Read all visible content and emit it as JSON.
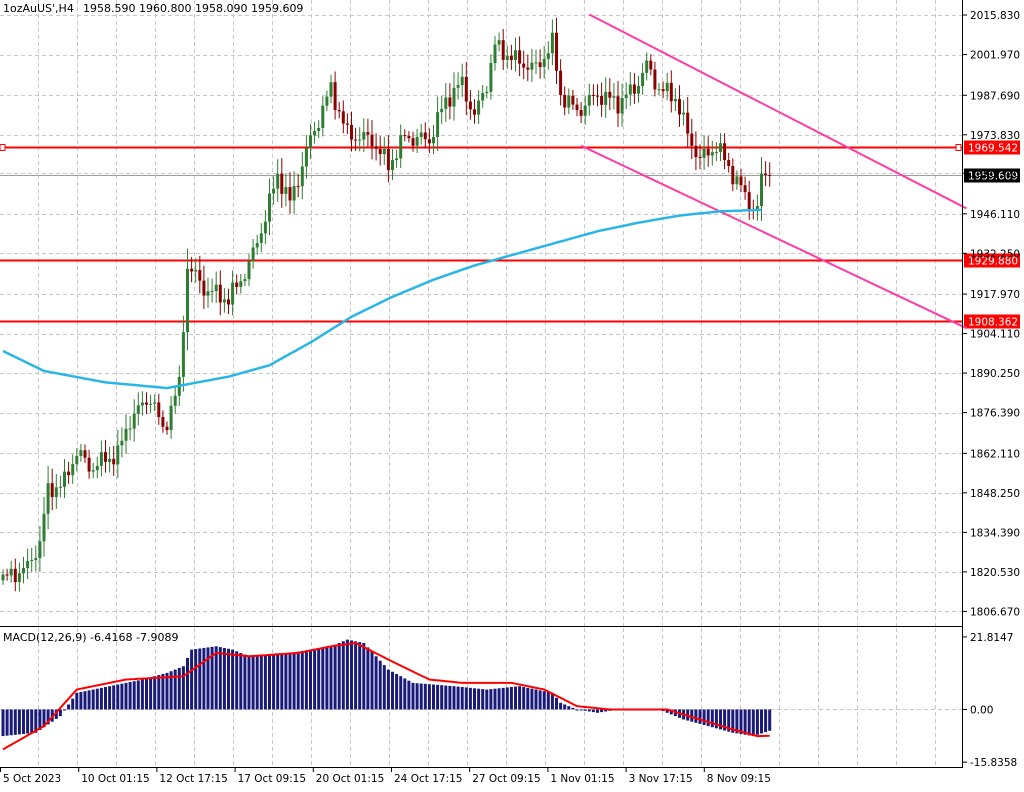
{
  "header": {
    "symbol": "1ozAuUS',H4",
    "ohlc": "1958.590 1960.800 1958.090 1959.609"
  },
  "colors": {
    "bull": "#2e7d32",
    "bear": "#8b0000",
    "ma": "#29b6e6",
    "channel": "#ff3ca5",
    "level": "#ff0000",
    "macd_hist": "#1a1a7a",
    "macd_signal": "#ff0000",
    "grid": "#c8c8c8"
  },
  "chart_data": [
    {
      "type": "candlestick",
      "title": "1ozAuUS',H4",
      "ylim": [
        1801.2,
        2021.1
      ],
      "y_ticks": [
        "2015.830",
        "2001.970",
        "1987.690",
        "1973.830",
        "1960.390",
        "1946.110",
        "1932.250",
        "1917.970",
        "1904.110",
        "1890.250",
        "1876.390",
        "1862.110",
        "1848.250",
        "1834.390",
        "1820.530",
        "1806.670"
      ],
      "x_labels": [
        "5 Oct 2023",
        "10 Oct 01:15",
        "12 Oct 17:15",
        "17 Oct 09:15",
        "20 Oct 01:15",
        "24 Oct 17:15",
        "27 Oct 09:15",
        "1 Nov 01:15",
        "3 Nov 17:15",
        "8 Nov 09:15"
      ],
      "price_anchors": [
        [
          0,
          1818
        ],
        [
          6,
          1822
        ],
        [
          9,
          1831
        ],
        [
          11,
          1849
        ],
        [
          15,
          1852
        ],
        [
          18,
          1863
        ],
        [
          21,
          1857
        ],
        [
          28,
          1862
        ],
        [
          31,
          1874
        ],
        [
          36,
          1882
        ],
        [
          39,
          1870
        ],
        [
          43,
          1886
        ],
        [
          45,
          1928
        ],
        [
          49,
          1920
        ],
        [
          55,
          1916
        ],
        [
          60,
          1928
        ],
        [
          64,
          1945
        ],
        [
          67,
          1960
        ],
        [
          70,
          1950
        ],
        [
          75,
          1972
        ],
        [
          80,
          1990
        ],
        [
          84,
          1974
        ],
        [
          90,
          1972
        ],
        [
          94,
          1963
        ],
        [
          98,
          1973
        ],
        [
          104,
          1972
        ],
        [
          108,
          1986
        ],
        [
          112,
          1992
        ],
        [
          115,
          1980
        ],
        [
          118,
          1992
        ],
        [
          120,
          2005
        ],
        [
          125,
          2000
        ],
        [
          130,
          1997
        ],
        [
          134,
          2006
        ],
        [
          136,
          1988
        ],
        [
          140,
          1982
        ],
        [
          145,
          1988
        ],
        [
          150,
          1985
        ],
        [
          154,
          1990
        ],
        [
          157,
          1998
        ],
        [
          160,
          1990
        ],
        [
          164,
          1987
        ],
        [
          167,
          1974
        ],
        [
          170,
          1965
        ],
        [
          174,
          1970
        ],
        [
          178,
          1960
        ],
        [
          182,
          1950
        ],
        [
          184,
          1947
        ],
        [
          185,
          1959
        ],
        [
          187,
          1960
        ]
      ],
      "ma_anchors": [
        [
          0,
          1898
        ],
        [
          10,
          1891
        ],
        [
          25,
          1887
        ],
        [
          40,
          1885
        ],
        [
          55,
          1889
        ],
        [
          65,
          1893
        ],
        [
          75,
          1901
        ],
        [
          85,
          1910
        ],
        [
          95,
          1917
        ],
        [
          105,
          1923
        ],
        [
          115,
          1928
        ],
        [
          125,
          1932
        ],
        [
          135,
          1936
        ],
        [
          145,
          1940
        ],
        [
          155,
          1943
        ],
        [
          165,
          1945.5
        ],
        [
          175,
          1947
        ],
        [
          185,
          1947.5
        ]
      ],
      "levels": [
        {
          "value": 1969.542,
          "label": "1969.542"
        },
        {
          "value": 1929.88,
          "label": "1929.880"
        },
        {
          "value": 1908.362,
          "label": "1908.362"
        }
      ],
      "current_price": {
        "value": 1959.609,
        "label": "1959.609"
      },
      "channel": {
        "upper": [
          [
            143,
            2016
          ],
          [
            235,
            1948
          ]
        ],
        "lower": [
          [
            141,
            1970
          ],
          [
            235,
            1906
          ]
        ]
      }
    },
    {
      "type": "bar",
      "title": "MACD(12,26,9) -6.4168 -7.9089",
      "ylim": [
        -17.3,
        24.5
      ],
      "y_ticks": [
        "21.8147",
        "0.00",
        "-15.8358"
      ],
      "macd_anchors": [
        [
          0,
          -8
        ],
        [
          8,
          -7
        ],
        [
          14,
          -2
        ],
        [
          18,
          5
        ],
        [
          26,
          7
        ],
        [
          34,
          9
        ],
        [
          40,
          11
        ],
        [
          44,
          13
        ],
        [
          46,
          18
        ],
        [
          52,
          19
        ],
        [
          56,
          18
        ],
        [
          60,
          16
        ],
        [
          70,
          17
        ],
        [
          80,
          19
        ],
        [
          84,
          21
        ],
        [
          88,
          20
        ],
        [
          94,
          12
        ],
        [
          100,
          8
        ],
        [
          110,
          7
        ],
        [
          118,
          6
        ],
        [
          126,
          7
        ],
        [
          134,
          5
        ],
        [
          136,
          2
        ],
        [
          140,
          0
        ],
        [
          145,
          -1
        ],
        [
          150,
          0
        ],
        [
          155,
          0
        ],
        [
          160,
          0
        ],
        [
          166,
          -3
        ],
        [
          172,
          -5
        ],
        [
          178,
          -7
        ],
        [
          183,
          -8
        ],
        [
          187,
          -6.4168
        ]
      ],
      "signal_anchors": [
        [
          0,
          -12
        ],
        [
          10,
          -5
        ],
        [
          18,
          6
        ],
        [
          30,
          9
        ],
        [
          44,
          10
        ],
        [
          52,
          17
        ],
        [
          60,
          16
        ],
        [
          72,
          17
        ],
        [
          80,
          19
        ],
        [
          86,
          20
        ],
        [
          94,
          15
        ],
        [
          104,
          9
        ],
        [
          112,
          8
        ],
        [
          124,
          8
        ],
        [
          132,
          6
        ],
        [
          140,
          1
        ],
        [
          148,
          0
        ],
        [
          155,
          0
        ],
        [
          162,
          0
        ],
        [
          170,
          -3
        ],
        [
          178,
          -6
        ],
        [
          184,
          -8
        ],
        [
          187,
          -7.9089
        ]
      ]
    }
  ]
}
